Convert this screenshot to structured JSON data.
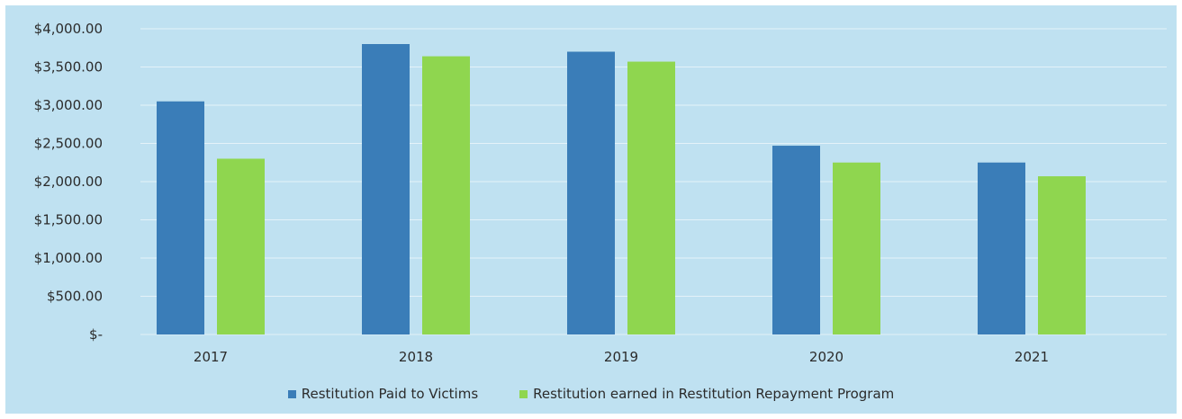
{
  "chart_data": {
    "type": "bar",
    "categories": [
      "2017",
      "2018",
      "2019",
      "2020",
      "2021"
    ],
    "series": [
      {
        "name": "Restitution Paid to Victims",
        "color": "#3a7db8",
        "values": [
          3050,
          3800,
          3700,
          2470,
          2250
        ]
      },
      {
        "name": "Restitution earned in Restitution Repayment Program",
        "color": "#8fd64f",
        "values": [
          2300,
          3640,
          3570,
          2250,
          2070
        ]
      }
    ],
    "ylim": [
      0,
      4000
    ],
    "yticks": [
      0,
      500,
      1000,
      1500,
      2000,
      2500,
      3000,
      3500,
      4000
    ],
    "ytick_labels": [
      "$-",
      "$500.00",
      "$1,000.00",
      "$1,500.00",
      "$2,000.00",
      "$2,500.00",
      "$3,000.00",
      "$3,500.00",
      "$4,000.00"
    ],
    "grid": true,
    "legend": "bottom",
    "background": "#bfe1f1"
  }
}
